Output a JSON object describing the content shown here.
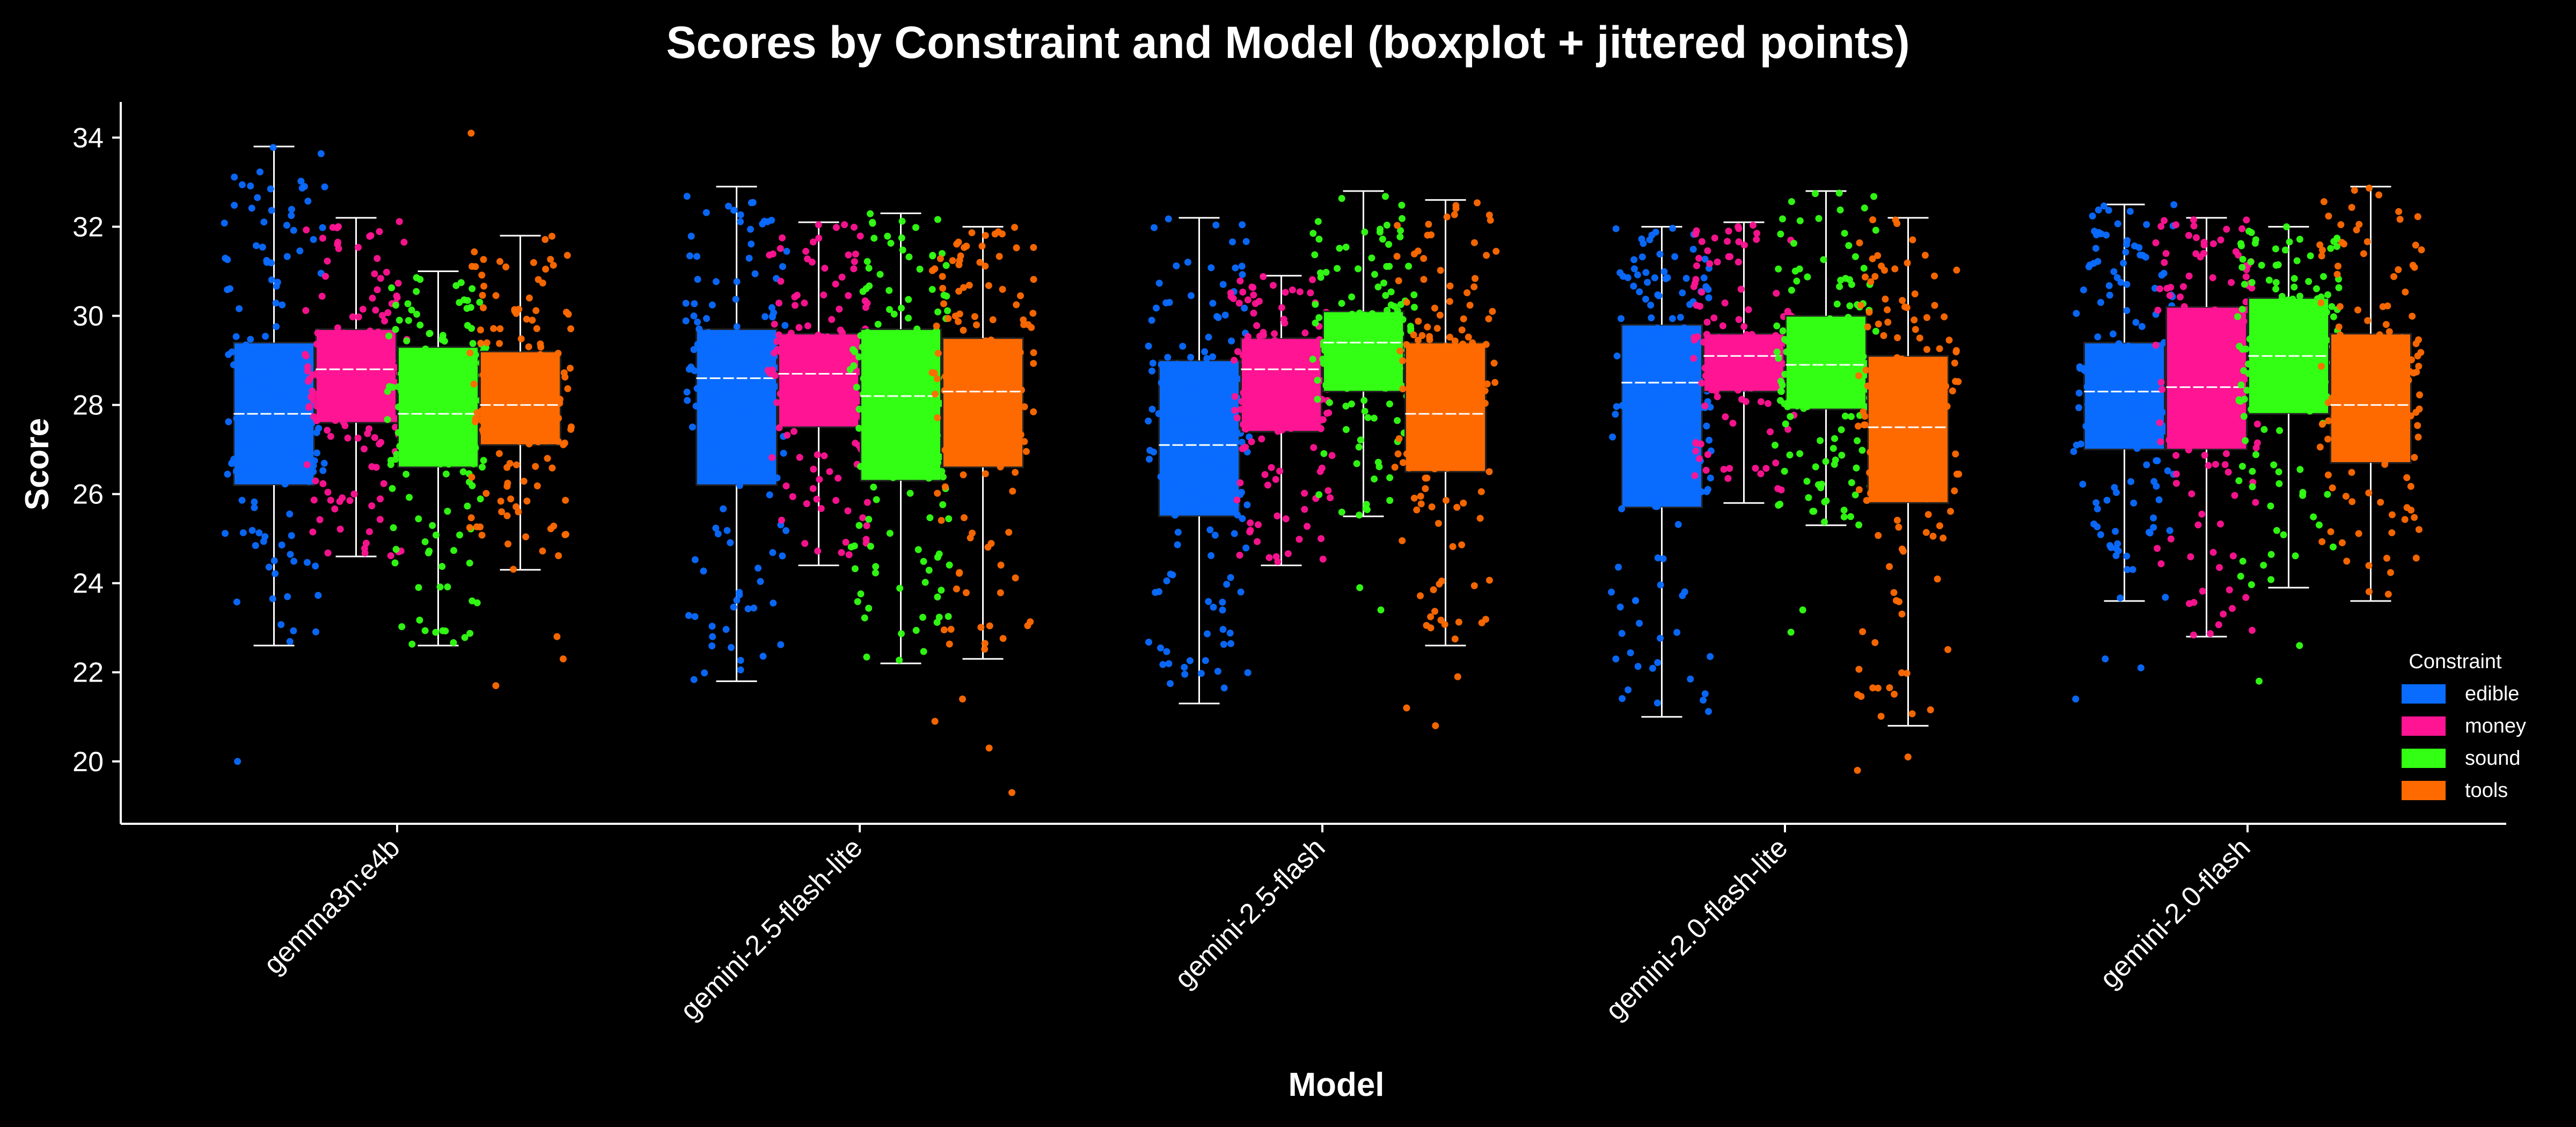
{
  "chart_data": {
    "type": "boxplot",
    "title": "Scores by Constraint and Model (boxplot + jittered points)",
    "xlabel": "Model",
    "ylabel": "Score",
    "ylim": [
      18.6,
      34.8
    ],
    "yticks": [
      20,
      22,
      24,
      26,
      28,
      30,
      32,
      34
    ],
    "categories": [
      "gemma3n:e4b",
      "gemini-2.5-flash-lite",
      "gemini-2.5-flash",
      "gemini-2.0-flash-lite",
      "gemini-2.0-flash"
    ],
    "legend": {
      "title": "Constraint",
      "placement": "bottom-right"
    },
    "background": "#000000",
    "series": [
      {
        "name": "edible",
        "color": "#0a6cff",
        "boxes": [
          {
            "whisker_low": 22.6,
            "q1": 26.2,
            "median": 27.8,
            "q3": 29.4,
            "whisker_high": 33.8,
            "outliers": [
              20.0
            ],
            "n_points": 150
          },
          {
            "whisker_low": 21.8,
            "q1": 26.2,
            "median": 28.6,
            "q3": 29.7,
            "whisker_high": 32.9,
            "outliers": [],
            "n_points": 150
          },
          {
            "whisker_low": 21.3,
            "q1": 25.5,
            "median": 27.1,
            "q3": 29.0,
            "whisker_high": 32.2,
            "outliers": [],
            "n_points": 150
          },
          {
            "whisker_low": 21.0,
            "q1": 25.7,
            "median": 28.5,
            "q3": 29.8,
            "whisker_high": 32.0,
            "outliers": [],
            "n_points": 150
          },
          {
            "whisker_low": 23.6,
            "q1": 27.0,
            "median": 28.3,
            "q3": 29.4,
            "whisker_high": 32.5,
            "outliers": [
              21.4,
              22.1,
              22.3
            ],
            "n_points": 150
          }
        ]
      },
      {
        "name": "money",
        "color": "#ff1493",
        "boxes": [
          {
            "whisker_low": 24.6,
            "q1": 27.6,
            "median": 28.8,
            "q3": 29.7,
            "whisker_high": 32.2,
            "outliers": [],
            "n_points": 150
          },
          {
            "whisker_low": 24.4,
            "q1": 27.5,
            "median": 28.7,
            "q3": 29.6,
            "whisker_high": 32.1,
            "outliers": [],
            "n_points": 150
          },
          {
            "whisker_low": 24.4,
            "q1": 27.4,
            "median": 28.8,
            "q3": 29.5,
            "whisker_high": 30.9,
            "outliers": [],
            "n_points": 150
          },
          {
            "whisker_low": 25.8,
            "q1": 28.3,
            "median": 29.1,
            "q3": 29.6,
            "whisker_high": 32.1,
            "outliers": [],
            "n_points": 150
          },
          {
            "whisker_low": 22.8,
            "q1": 27.0,
            "median": 28.4,
            "q3": 30.2,
            "whisker_high": 32.2,
            "outliers": [],
            "n_points": 150
          }
        ]
      },
      {
        "name": "sound",
        "color": "#33ff14",
        "boxes": [
          {
            "whisker_low": 22.6,
            "q1": 26.6,
            "median": 27.8,
            "q3": 29.3,
            "whisker_high": 31.0,
            "outliers": [],
            "n_points": 150
          },
          {
            "whisker_low": 22.2,
            "q1": 26.3,
            "median": 28.2,
            "q3": 29.7,
            "whisker_high": 32.3,
            "outliers": [],
            "n_points": 150
          },
          {
            "whisker_low": 25.5,
            "q1": 28.3,
            "median": 29.4,
            "q3": 30.1,
            "whisker_high": 32.8,
            "outliers": [
              23.4,
              23.9
            ],
            "n_points": 150
          },
          {
            "whisker_low": 25.3,
            "q1": 27.9,
            "median": 28.9,
            "q3": 30.0,
            "whisker_high": 32.8,
            "outliers": [
              22.9,
              23.4
            ],
            "n_points": 150
          },
          {
            "whisker_low": 23.9,
            "q1": 27.8,
            "median": 29.1,
            "q3": 30.4,
            "whisker_high": 32.0,
            "outliers": [
              21.8,
              22.6
            ],
            "n_points": 150
          }
        ]
      },
      {
        "name": "tools",
        "color": "#ff6a00",
        "boxes": [
          {
            "whisker_low": 24.3,
            "q1": 27.1,
            "median": 28.0,
            "q3": 29.2,
            "whisker_high": 31.8,
            "outliers": [
              21.7,
              22.3,
              22.8,
              34.1
            ],
            "n_points": 150
          },
          {
            "whisker_low": 22.3,
            "q1": 26.6,
            "median": 28.3,
            "q3": 29.5,
            "whisker_high": 32.0,
            "outliers": [
              19.3,
              20.3,
              20.9,
              21.4
            ],
            "n_points": 150
          },
          {
            "whisker_low": 22.6,
            "q1": 26.5,
            "median": 27.8,
            "q3": 29.4,
            "whisker_high": 32.6,
            "outliers": [
              20.8,
              21.2,
              21.9
            ],
            "n_points": 150
          },
          {
            "whisker_low": 20.8,
            "q1": 25.8,
            "median": 27.5,
            "q3": 29.1,
            "whisker_high": 32.2,
            "outliers": [
              19.8,
              20.1,
              21.5
            ],
            "n_points": 150
          },
          {
            "whisker_low": 23.6,
            "q1": 26.7,
            "median": 28.0,
            "q3": 29.6,
            "whisker_high": 32.9,
            "outliers": [],
            "n_points": 150
          }
        ]
      }
    ]
  }
}
